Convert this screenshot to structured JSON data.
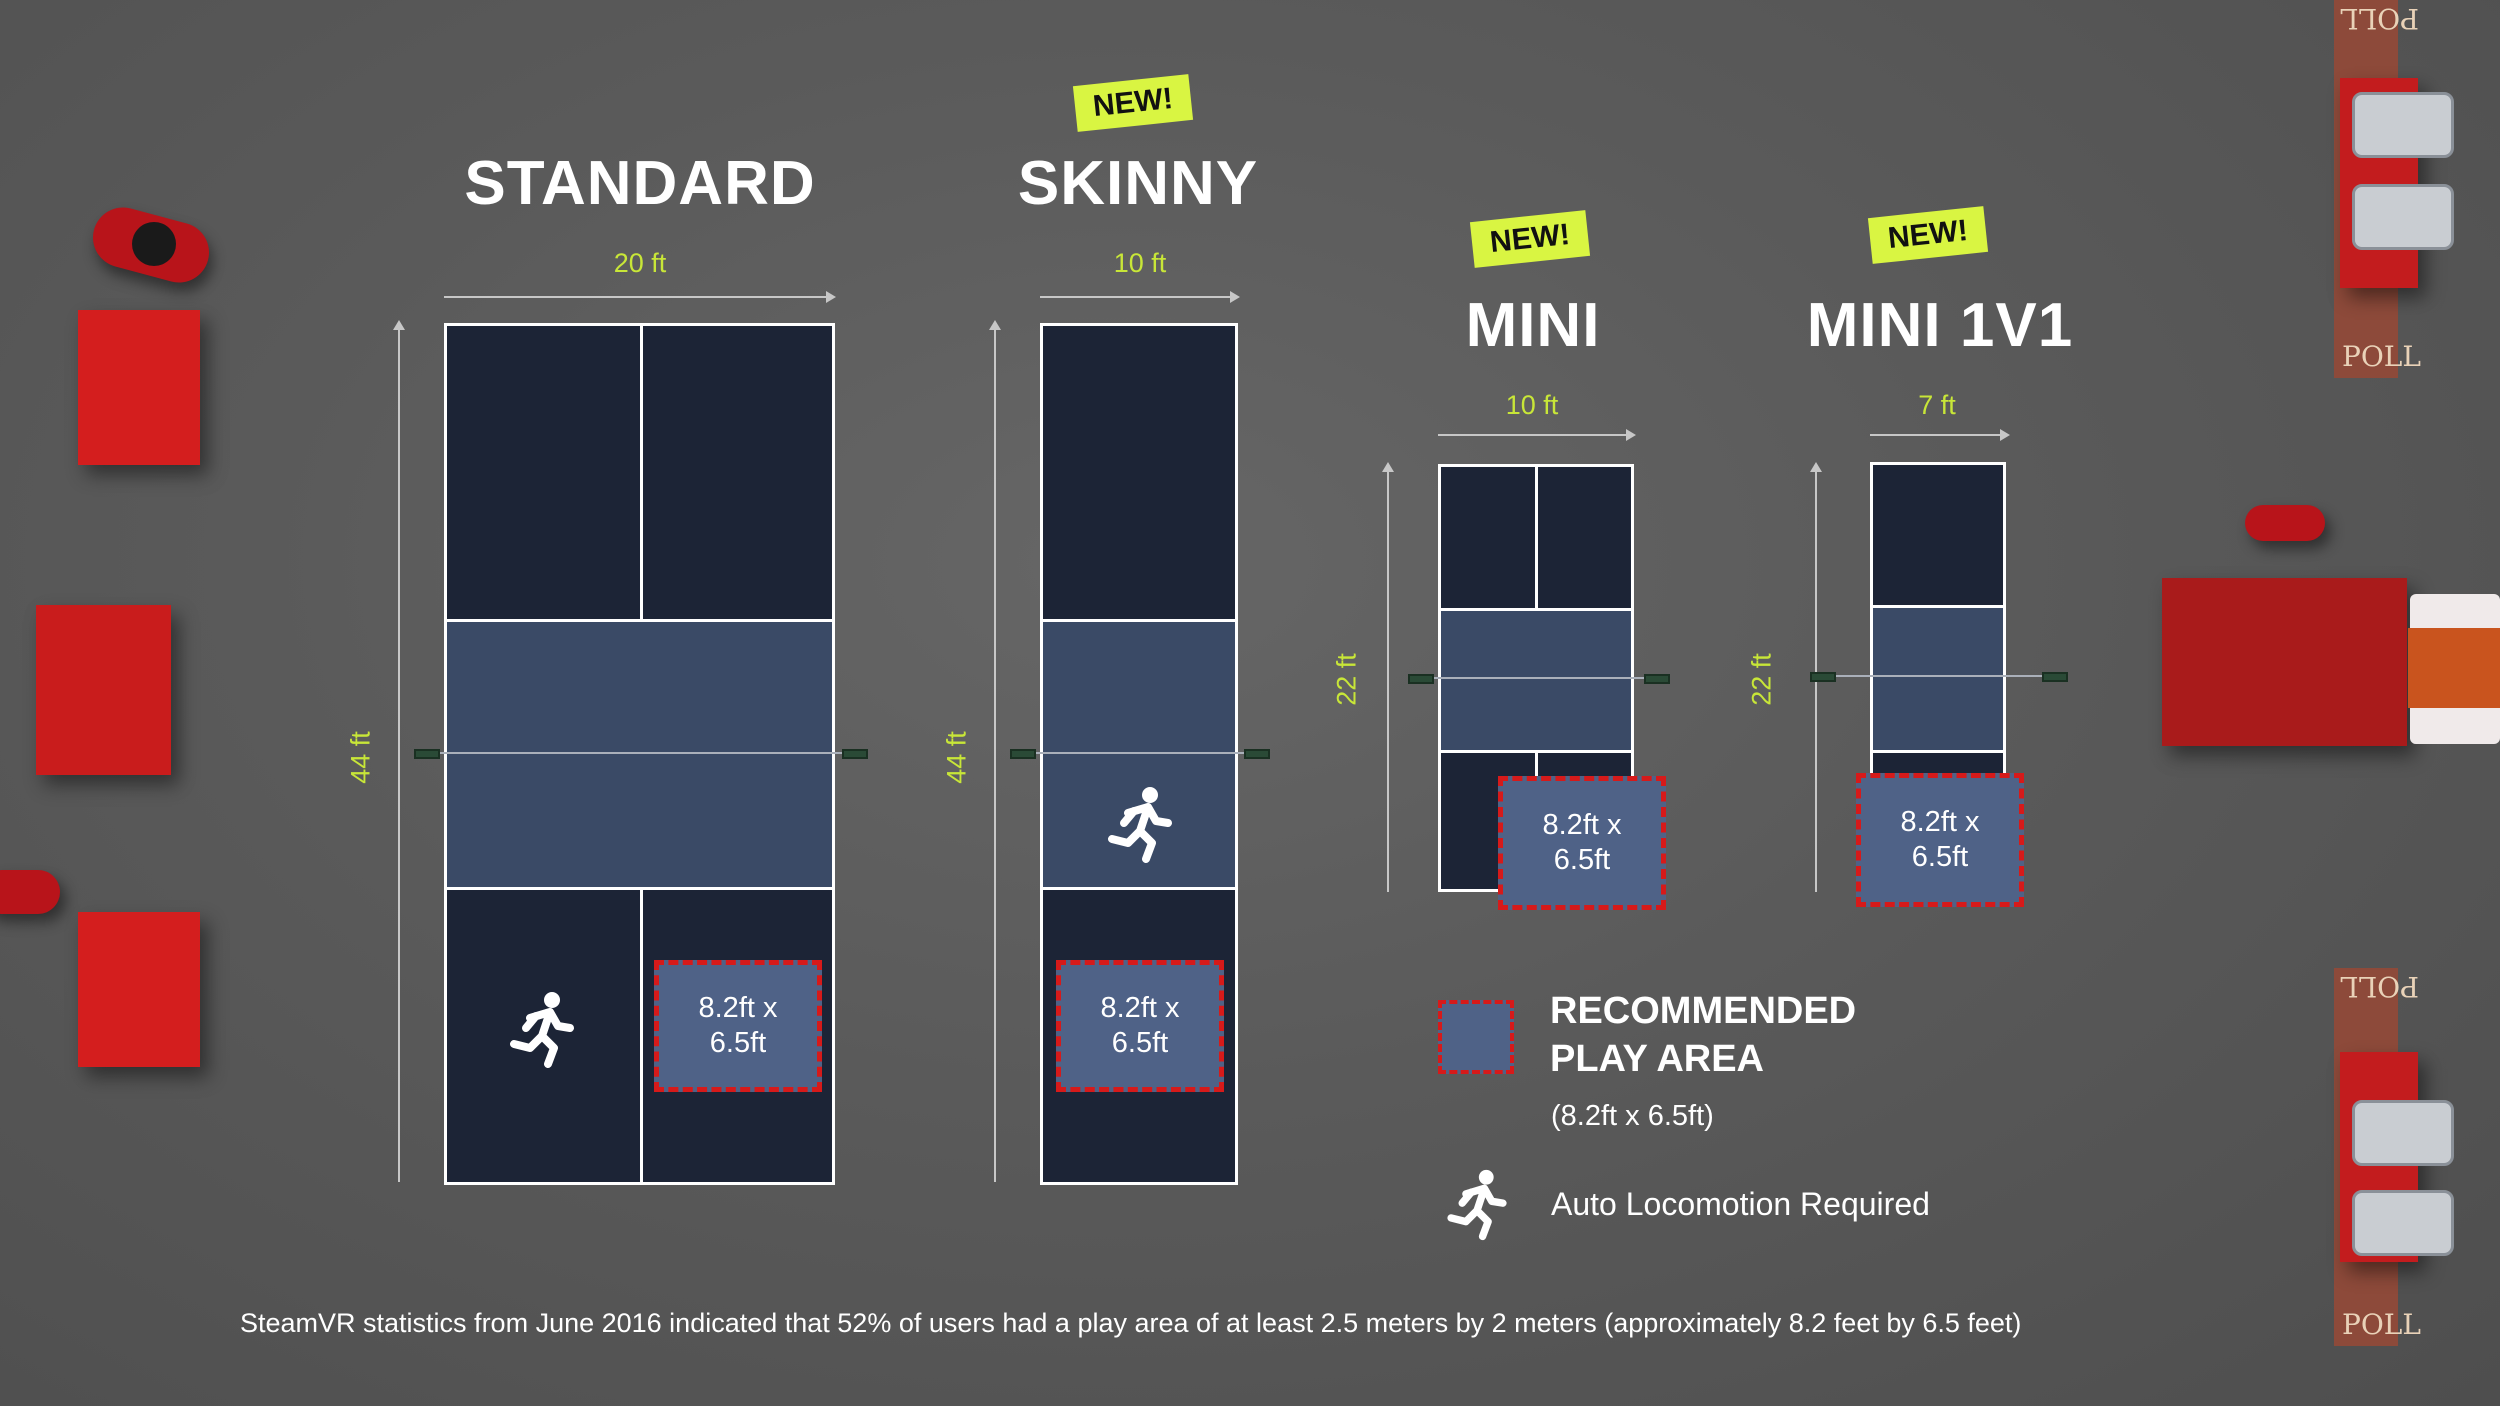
{
  "courts": [
    {
      "title": "STANDARD",
      "width_label": "20 ft",
      "length_label": "44 ft",
      "is_new": false
    },
    {
      "title": "SKINNY",
      "width_label": "10 ft",
      "length_label": "44 ft",
      "is_new": true
    },
    {
      "title": "MINI",
      "width_label": "10 ft",
      "length_label": "22 ft",
      "is_new": true
    },
    {
      "title": "MINI 1V1",
      "width_label": "7 ft",
      "length_label": "22 ft",
      "is_new": true
    }
  ],
  "new_tag": "NEW!",
  "play_area_label_line1": "8.2ft x",
  "play_area_label_line2": "6.5ft",
  "legend": {
    "recommended_line1": "RECOMMENDED",
    "recommended_line2": "PLAY AREA",
    "recommended_sub": "(8.2ft x 6.5ft)",
    "locomotion": "Auto Locomotion Required"
  },
  "footer": "SteamVR statistics from June 2016 indicated that 52% of users had a play area of at least 2.5 meters by 2 meters (approximately 8.2 feet by 6.5 feet)",
  "decor": {
    "poll_text": "POLL",
    "colors": {
      "court_dark": "#1c2436",
      "court_mid": "#3a4a66",
      "play_area_fill": "#4f6287",
      "play_area_border": "#d61a1a",
      "dimension_text": "#c8e638",
      "new_tag_bg": "#d9f542"
    }
  }
}
